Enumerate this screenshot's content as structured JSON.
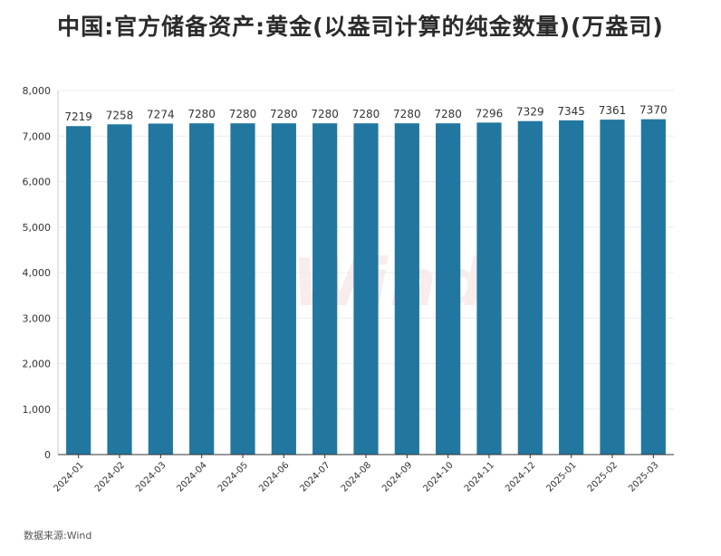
{
  "title": "中国:官方储备资产:黄金(以盎司计算的纯金数量)(万盎司)",
  "source": "数据来源:Wind",
  "watermark": "Wind",
  "colors": {
    "bar": "#21779f",
    "grid": "#ececec",
    "axis": "#333333",
    "text": "#333333"
  },
  "chart_data": {
    "type": "bar",
    "title": "中国:官方储备资产:黄金(以盎司计算的纯金数量)(万盎司)",
    "xlabel": "",
    "ylabel": "",
    "ylim": [
      0,
      8000
    ],
    "yticks": [
      0,
      1000,
      2000,
      3000,
      4000,
      5000,
      6000,
      7000,
      8000
    ],
    "ytick_labels": [
      "0",
      "1,000",
      "2,000",
      "3,000",
      "4,000",
      "5,000",
      "6,000",
      "7,000",
      "8,000"
    ],
    "grid": true,
    "legend": "none",
    "categories": [
      "2024-01",
      "2024-02",
      "2024-03",
      "2024-04",
      "2024-05",
      "2024-06",
      "2024-07",
      "2024-08",
      "2024-09",
      "2024-10",
      "2024-11",
      "2024-12",
      "2025-01",
      "2025-02",
      "2025-03"
    ],
    "values": [
      7219,
      7258,
      7274,
      7280,
      7280,
      7280,
      7280,
      7280,
      7280,
      7280,
      7296,
      7329,
      7345,
      7361,
      7370
    ]
  }
}
